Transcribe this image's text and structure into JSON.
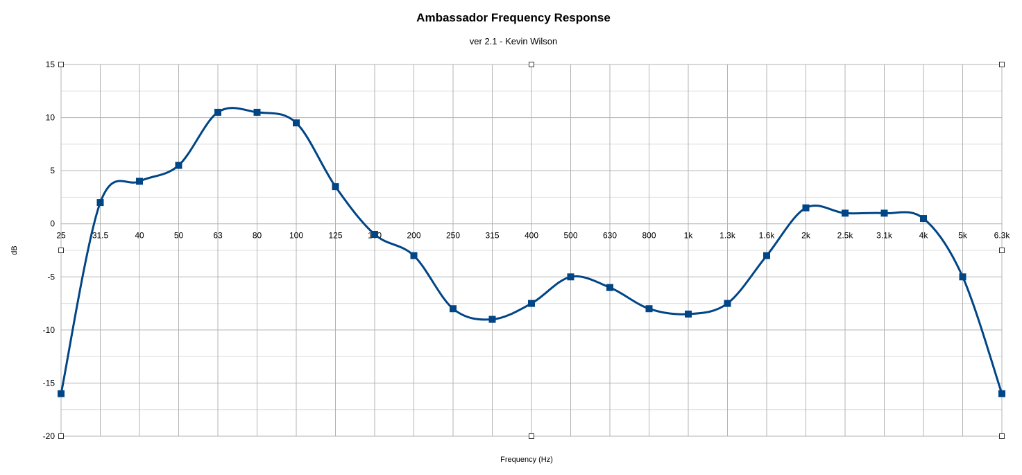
{
  "chart_data": {
    "type": "line",
    "title": "Ambassador Frequency Response",
    "subtitle": "ver 2.1 - Kevin Wilson",
    "xlabel": "Frequency (Hz)",
    "ylabel": "dB",
    "ylim": [
      -20,
      15
    ],
    "yticks": [
      15,
      10,
      5,
      0,
      -5,
      -10,
      -15,
      -20
    ],
    "grid": true,
    "smooth": true,
    "marker": "square",
    "color": "#004586",
    "categories": [
      "25",
      "31.5",
      "40",
      "50",
      "63",
      "80",
      "100",
      "125",
      "160",
      "200",
      "250",
      "315",
      "400",
      "500",
      "630",
      "800",
      "1k",
      "1.3k",
      "1.6k",
      "2k",
      "2.5k",
      "3.1k",
      "4k",
      "5k",
      "6.3k"
    ],
    "series": [
      {
        "name": "dB",
        "values": [
          -16,
          2,
          4,
          5.5,
          10.5,
          10.5,
          9.5,
          3.5,
          -1,
          -3,
          -8,
          -9,
          -7.5,
          -5,
          -6,
          -8,
          -8.5,
          -7.5,
          -3,
          1.5,
          1,
          1,
          0.5,
          -5,
          -16
        ]
      }
    ]
  }
}
